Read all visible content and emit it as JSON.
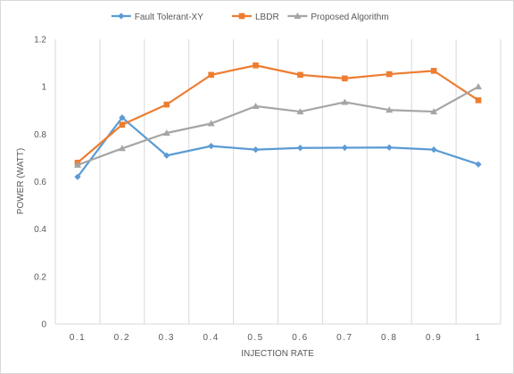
{
  "chart_data": {
    "type": "line",
    "title": "",
    "xlabel": "INJECTION RATE",
    "ylabel": "POWER (WATT)",
    "categories": [
      "0.1",
      "0.2",
      "0.3",
      "0.4",
      "0.5",
      "0.6",
      "0.7",
      "0.8",
      "0.9",
      "1"
    ],
    "ylim": [
      0,
      1.2
    ],
    "yticks": [
      "0",
      "0.2",
      "0.4",
      "0.6",
      "0.8",
      "1",
      "1.2"
    ],
    "grid": "vertical",
    "legend": "top",
    "series": [
      {
        "name": "Fault Tolerant-XY",
        "color": "#5b9bd5",
        "marker": "diamond",
        "values": [
          0.62,
          0.87,
          0.71,
          0.75,
          0.735,
          0.742,
          0.743,
          0.744,
          0.735,
          0.673
        ]
      },
      {
        "name": "LBDR",
        "color": "#ed7d31",
        "marker": "square",
        "values": [
          0.68,
          0.84,
          0.925,
          1.05,
          1.09,
          1.05,
          1.035,
          1.053,
          1.067,
          0.943
        ]
      },
      {
        "name": "Proposed Algorithm",
        "color": "#a5a5a5",
        "marker": "triangle",
        "values": [
          0.67,
          0.74,
          0.805,
          0.845,
          0.918,
          0.895,
          0.935,
          0.902,
          0.895,
          1.0
        ]
      }
    ]
  }
}
